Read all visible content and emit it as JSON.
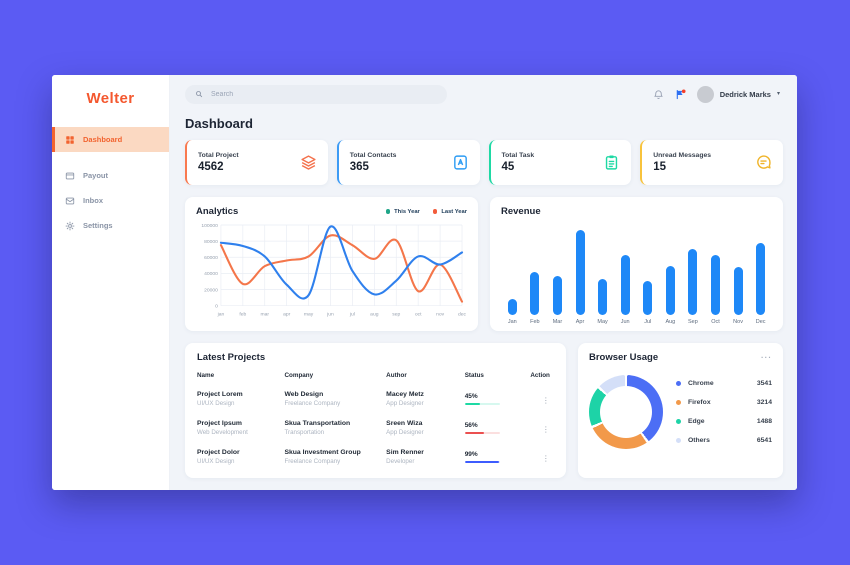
{
  "app": {
    "logo": "Welter"
  },
  "sidebar": {
    "items": [
      {
        "label": "Dashboard",
        "icon": "dashboard-grid-icon",
        "active": true
      },
      {
        "label": "Payout",
        "icon": "wallet-icon",
        "active": false
      },
      {
        "label": "Inbox",
        "icon": "envelope-icon",
        "active": false
      },
      {
        "label": "Settings",
        "icon": "gear-icon",
        "active": false
      }
    ]
  },
  "header": {
    "search_placeholder": "Search",
    "user_name": "Dedrick Marks",
    "icons": [
      "bell-icon",
      "flag-icon",
      "chevron-down-icon"
    ]
  },
  "page": {
    "title": "Dashboard"
  },
  "stats": {
    "cards": [
      {
        "label": "Total Project",
        "value": "4562",
        "accent": "#F9794F",
        "icon": "layers-icon"
      },
      {
        "label": "Total Contacts",
        "value": "365",
        "accent": "#3D9BF5",
        "icon": "contact-book-icon"
      },
      {
        "label": "Total Task",
        "value": "45",
        "accent": "#1ED9A4",
        "icon": "clipboard-icon"
      },
      {
        "label": "Unread Messages",
        "value": "15",
        "accent": "#F8C33C",
        "icon": "chat-bubble-icon"
      }
    ]
  },
  "chart_data": [
    {
      "id": "analytics",
      "type": "line",
      "title": "Analytics",
      "x": [
        "jan",
        "feb",
        "mar",
        "apr",
        "may",
        "jun",
        "jul",
        "aug",
        "sep",
        "oct",
        "nov",
        "dec"
      ],
      "ylim": [
        0,
        100000
      ],
      "yticks": [
        0,
        20000,
        40000,
        60000,
        80000,
        100000
      ],
      "grid": true,
      "legend_position": "top-right",
      "series": [
        {
          "name": "This Year",
          "color": "#2F80ED",
          "legend_dot": "#1FA588",
          "values": [
            78000,
            74000,
            61000,
            26000,
            13000,
            98000,
            43000,
            14000,
            31000,
            61000,
            51000,
            66000
          ]
        },
        {
          "name": "Last Year",
          "color": "#F4764A",
          "legend_dot": "#F25C3B",
          "values": [
            75000,
            27000,
            49000,
            56000,
            61000,
            87000,
            75000,
            58000,
            81000,
            18000,
            51000,
            5000
          ]
        }
      ]
    },
    {
      "id": "revenue",
      "type": "bar",
      "title": "Revenue",
      "categories": [
        "Jan",
        "Feb",
        "Mar",
        "Apr",
        "May",
        "Jun",
        "Jul",
        "Aug",
        "Sep",
        "Oct",
        "Nov",
        "Dec"
      ],
      "values": [
        18,
        48,
        43,
        95,
        40,
        67,
        38,
        55,
        73,
        67,
        53,
        80
      ],
      "ylim": [
        0,
        100
      ],
      "grid": false,
      "bar_color": "#1E88F7"
    },
    {
      "id": "browser-usage",
      "type": "donut",
      "title": "Browser Usage",
      "items": [
        {
          "label": "Chrome",
          "value": "3541",
          "color": "#4C6EF5",
          "arc_deg": 140
        },
        {
          "label": "Firefox",
          "value": "3214",
          "color": "#F2994A",
          "arc_deg": 98
        },
        {
          "label": "Edge",
          "value": "1488",
          "color": "#1DD3A7",
          "arc_deg": 62
        },
        {
          "label": "Others",
          "value": "6541",
          "color": "#D4DFF8",
          "arc_deg": 44
        }
      ]
    }
  ],
  "projects": {
    "title": "Latest Projects",
    "columns": [
      "Name",
      "Company",
      "Author",
      "Status",
      "Action"
    ],
    "rows": [
      {
        "name": "Project Lorem",
        "name_sub": "UI/UX Design",
        "company": "Web Design",
        "company_sub": "Freelance Company",
        "author": "Macey Metz",
        "author_sub": "App Designer",
        "status_pct": "45%",
        "status_value": 45,
        "status_color": "#1ED9A4"
      },
      {
        "name": "Project Ipsum",
        "name_sub": "Web Development",
        "company": "Skua Transportation",
        "company_sub": "Transportation",
        "author": "Sreen Wiza",
        "author_sub": "App Designer",
        "status_pct": "56%",
        "status_value": 56,
        "status_color": "#EB5050"
      },
      {
        "name": "Project Dolor",
        "name_sub": "UI/UX Design",
        "company": "Skua Investment Group",
        "company_sub": "Freelance Company",
        "author": "Sim Renner",
        "author_sub": "Developer",
        "status_pct": "99%",
        "status_value": 99,
        "status_color": "#3D5CFE"
      }
    ],
    "action_icon": "dots-vertical-icon"
  },
  "browser": {
    "menu_label": "···"
  }
}
